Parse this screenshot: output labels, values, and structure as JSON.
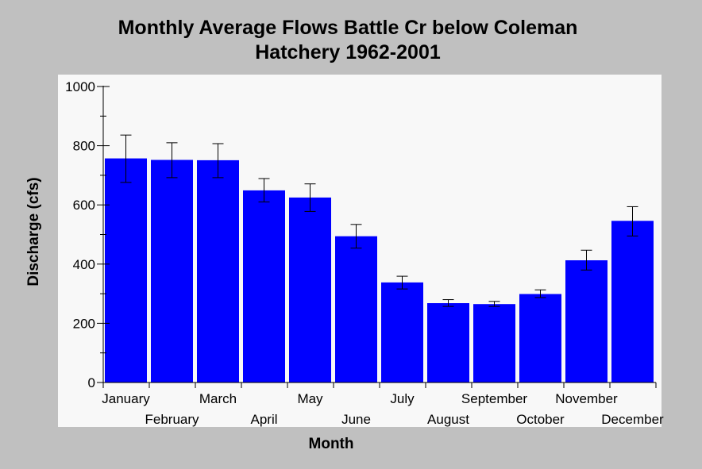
{
  "chart_data": {
    "type": "bar",
    "title_lines": [
      "Monthly Average Flows Battle Cr below Coleman",
      "Hatchery 1962-2001"
    ],
    "xlabel": "Month",
    "ylabel": "Discharge (cfs)",
    "ylim": [
      0,
      1000
    ],
    "yticks": [
      0,
      200,
      400,
      600,
      800,
      1000
    ],
    "grid": false,
    "categories": [
      "January",
      "February",
      "March",
      "April",
      "May",
      "June",
      "July",
      "August",
      "September",
      "October",
      "November",
      "December"
    ],
    "series": [
      {
        "values": [
          757,
          752,
          751,
          649,
          625,
          494,
          338,
          268,
          265,
          299,
          413,
          546
        ],
        "error_low": [
          676,
          692,
          692,
          610,
          578,
          454,
          316,
          257,
          257,
          287,
          380,
          495
        ],
        "error_high": [
          836,
          810,
          807,
          689,
          671,
          534,
          359,
          280,
          274,
          313,
          447,
          594
        ],
        "color": "#0000ff"
      }
    ]
  }
}
